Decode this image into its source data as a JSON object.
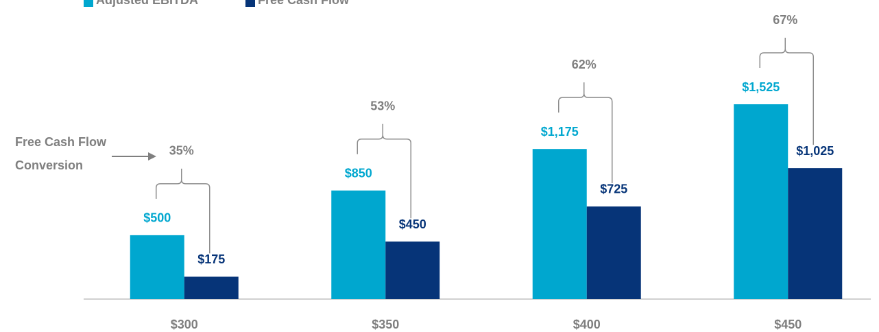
{
  "chart_data": {
    "type": "bar",
    "categories": [
      "$300",
      "$350",
      "$400",
      "$450"
    ],
    "series": [
      {
        "name": "Adjusted EBITDA",
        "color": "#00a7cf",
        "values": [
          500,
          850,
          1175,
          1525
        ],
        "value_labels": [
          "$500",
          "$850",
          "$1,175",
          "$1,525"
        ]
      },
      {
        "name": "Free Cash Flow",
        "color": "#063478",
        "values": [
          175,
          450,
          725,
          1025
        ],
        "value_labels": [
          "$175",
          "$450",
          "$725",
          "$1,025"
        ]
      }
    ],
    "conversion": {
      "label": "Free Cash Flow Conversion",
      "values": [
        35,
        53,
        62,
        67
      ],
      "value_labels": [
        "35%",
        "53%",
        "62%",
        "67%"
      ]
    }
  }
}
